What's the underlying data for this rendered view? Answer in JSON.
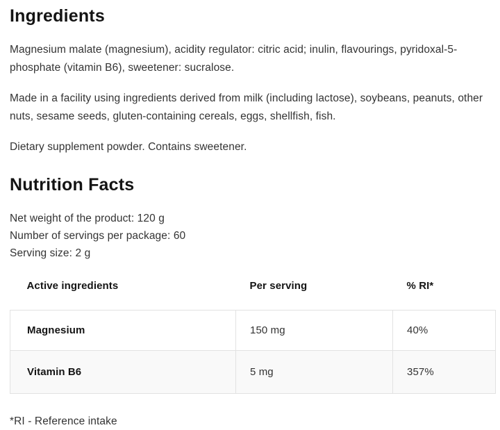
{
  "page": {
    "background_color": "#ffffff",
    "heading_color": "#141414",
    "text_color": "#333333",
    "table_border_color": "#e2e2e2",
    "table_stripe_color": "#f9f9f9"
  },
  "ingredients": {
    "heading": "Ingredients",
    "composition": "Magnesium malate (magnesium), acidity regulator: citric acid; inulin, flavourings, pyridoxal-5-phosphate (vitamin B6), sweetener: sucralose.",
    "allergen_notice": "Made in a facility using ingredients derived from milk (including lactose), soybeans, peanuts, other nuts, sesame seeds, gluten-containing cereals, eggs, shellfish, fish.",
    "product_statement": "Dietary supplement powder. Contains sweetener."
  },
  "nutrition": {
    "heading": "Nutrition Facts",
    "net_weight": "Net weight of the product: 120 g",
    "servings_per_package": "Number of servings per package: 60",
    "serving_size": "Serving size: 2 g",
    "table": {
      "headers": [
        "Active ingredients",
        "Per serving",
        "% RI*"
      ],
      "rows": [
        {
          "name": "Magnesium",
          "per_serving": "150 mg",
          "ri": "40%"
        },
        {
          "name": "Vitamin B6",
          "per_serving": "5 mg",
          "ri": "357%"
        }
      ]
    },
    "footnote": "*RI - Reference intake"
  }
}
